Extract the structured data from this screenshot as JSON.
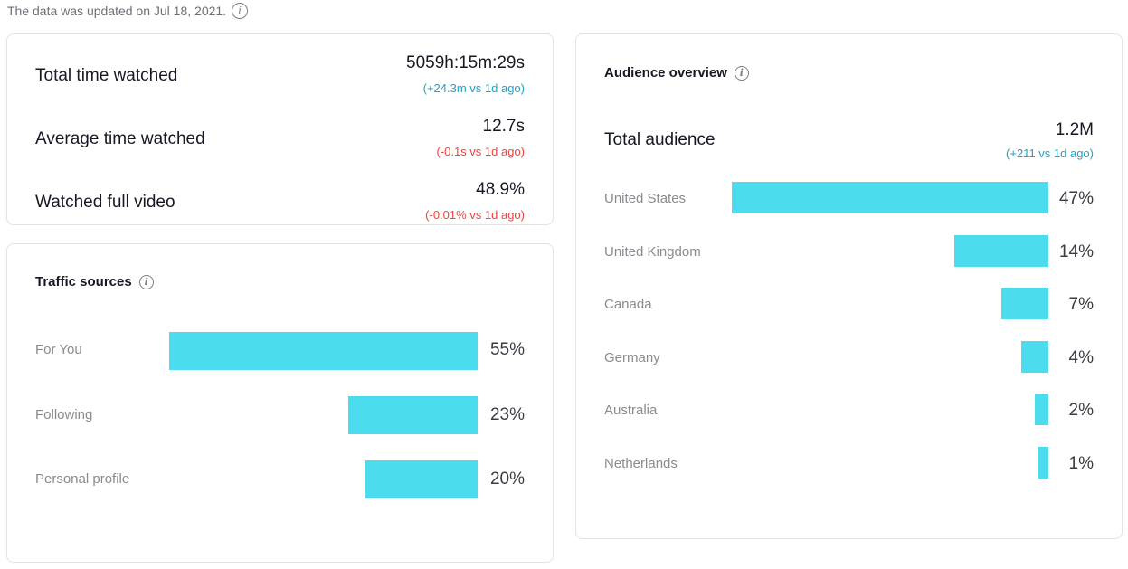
{
  "header": {
    "updated_text": "The data was updated on Jul 18, 2021.",
    "info_icon": "info-icon"
  },
  "metrics": [
    {
      "label": "Total time watched",
      "value": "5059h:15m:29s",
      "delta": "(+24.3m vs 1d ago)",
      "trend": "positive"
    },
    {
      "label": "Average time watched",
      "value": "12.7s",
      "delta": "(-0.1s vs 1d ago)",
      "trend": "negative"
    },
    {
      "label": "Watched full video",
      "value": "48.9%",
      "delta": "(-0.01% vs 1d ago)",
      "trend": "negative"
    }
  ],
  "traffic": {
    "title": "Traffic sources",
    "items": [
      {
        "label": "For You",
        "percent": "55%",
        "share": 55
      },
      {
        "label": "Following",
        "percent": "23%",
        "share": 23
      },
      {
        "label": "Personal profile",
        "percent": "20%",
        "share": 20
      }
    ]
  },
  "audience": {
    "title": "Audience overview",
    "total_label": "Total audience",
    "total_value": "1.2M",
    "total_delta": "(+211 vs 1d ago)",
    "countries": [
      {
        "label": "United States",
        "percent": "47%",
        "share": 47
      },
      {
        "label": "United Kingdom",
        "percent": "14%",
        "share": 14
      },
      {
        "label": "Canada",
        "percent": "7%",
        "share": 7
      },
      {
        "label": "Germany",
        "percent": "4%",
        "share": 4
      },
      {
        "label": "Australia",
        "percent": "2%",
        "share": 2
      },
      {
        "label": "Netherlands",
        "percent": "1%",
        "share": 1
      }
    ]
  },
  "colors": {
    "bar": "#4bdded",
    "positive": "#1ea2c5",
    "negative": "#f0423c"
  }
}
